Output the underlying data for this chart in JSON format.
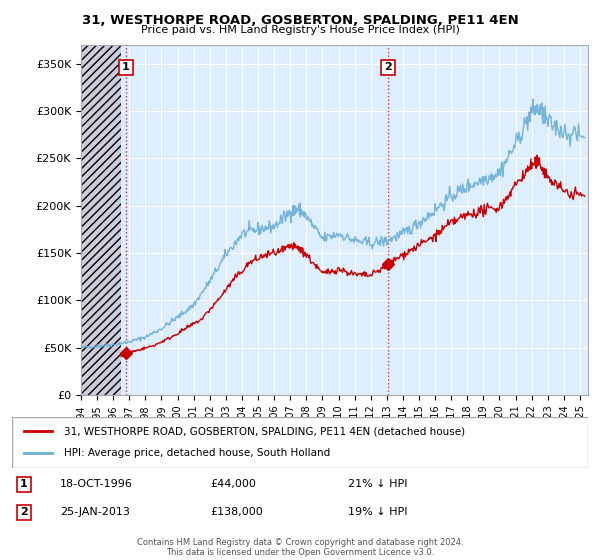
{
  "title": "31, WESTHORPE ROAD, GOSBERTON, SPALDING, PE11 4EN",
  "subtitle": "Price paid vs. HM Land Registry's House Price Index (HPI)",
  "xlim_start": 1994.0,
  "xlim_end": 2025.5,
  "ylim_min": 0,
  "ylim_max": 370000,
  "yticks": [
    0,
    50000,
    100000,
    150000,
    200000,
    250000,
    300000,
    350000
  ],
  "ytick_labels": [
    "£0",
    "£50K",
    "£100K",
    "£150K",
    "£200K",
    "£250K",
    "£300K",
    "£350K"
  ],
  "transaction1": {
    "date_num": 1996.79,
    "price": 44000,
    "label": "1"
  },
  "transaction2": {
    "date_num": 2013.07,
    "price": 138000,
    "label": "2"
  },
  "hpi_color": "#6aaed6",
  "price_color": "#cc0000",
  "chart_bg": "#ddeeff",
  "hatch_color": "#bbbbcc",
  "legend_label1": "31, WESTHORPE ROAD, GOSBERTON, SPALDING, PE11 4EN (detached house)",
  "legend_label2": "HPI: Average price, detached house, South Holland",
  "info1_date": "18-OCT-1996",
  "info1_price": "£44,000",
  "info1_pct": "21% ↓ HPI",
  "info2_date": "25-JAN-2013",
  "info2_price": "£138,000",
  "info2_pct": "19% ↓ HPI",
  "footnote": "Contains HM Land Registry data © Crown copyright and database right 2024.\nThis data is licensed under the Open Government Licence v3.0.",
  "background_color": "#ffffff",
  "hatch_end": 1996.5
}
